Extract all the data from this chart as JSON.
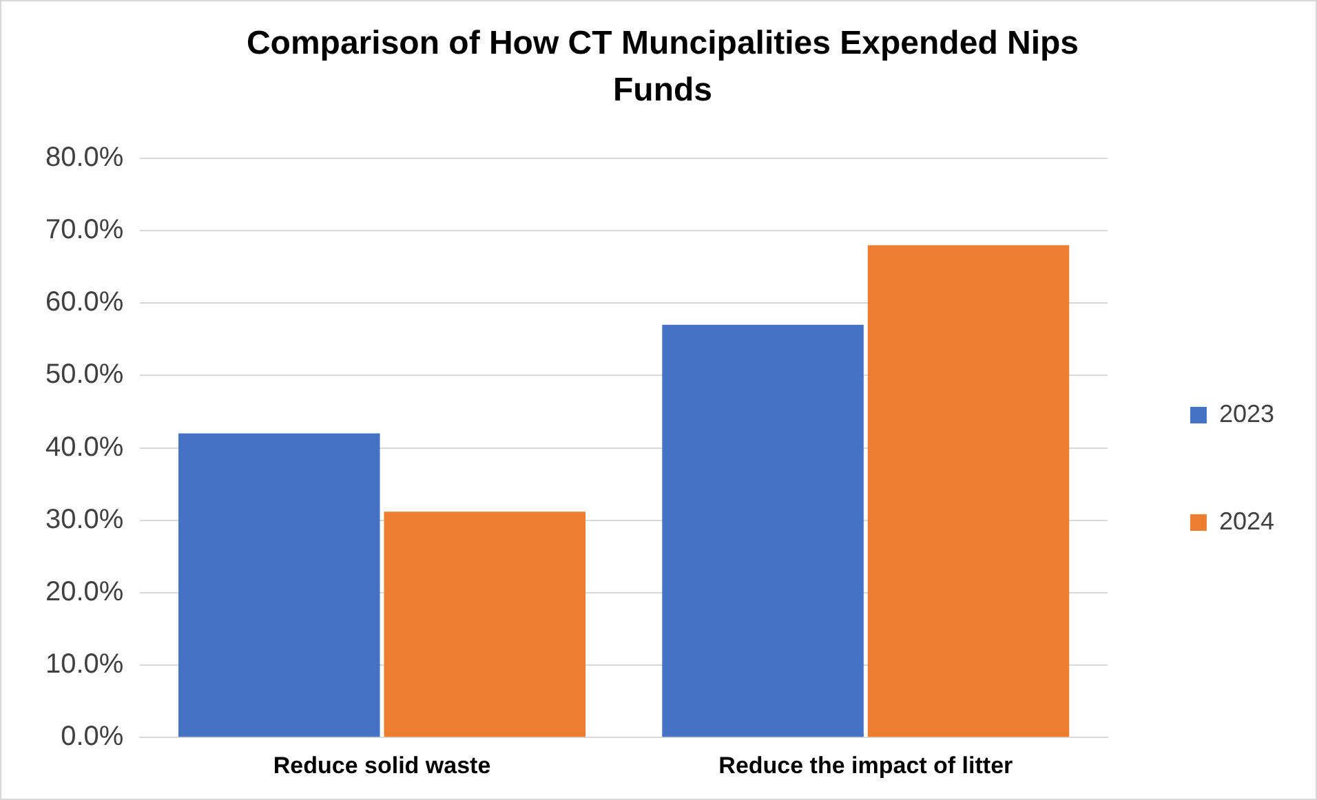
{
  "chart_data": {
    "type": "bar",
    "title": "Comparison of How CT Muncipalities Expended Nips Funds",
    "categories": [
      "Reduce solid waste",
      "Reduce the impact of litter"
    ],
    "series": [
      {
        "name": "2023",
        "color": "#4472c4",
        "values": [
          42,
          57
        ]
      },
      {
        "name": "2024",
        "color": "#ed7d31",
        "values": [
          31.2,
          68
        ]
      }
    ],
    "ylim": [
      0,
      80
    ],
    "yticks": [
      {
        "value": 0,
        "label": "0.0%"
      },
      {
        "value": 10,
        "label": "10.0%"
      },
      {
        "value": 20,
        "label": "20.0%"
      },
      {
        "value": 30,
        "label": "30.0%"
      },
      {
        "value": 40,
        "label": "40.0%"
      },
      {
        "value": 50,
        "label": "50.0%"
      },
      {
        "value": 60,
        "label": "60.0%"
      },
      {
        "value": 70,
        "label": "70.0%"
      },
      {
        "value": 80,
        "label": "80.0%"
      }
    ],
    "grid": "y",
    "legend": "right"
  }
}
